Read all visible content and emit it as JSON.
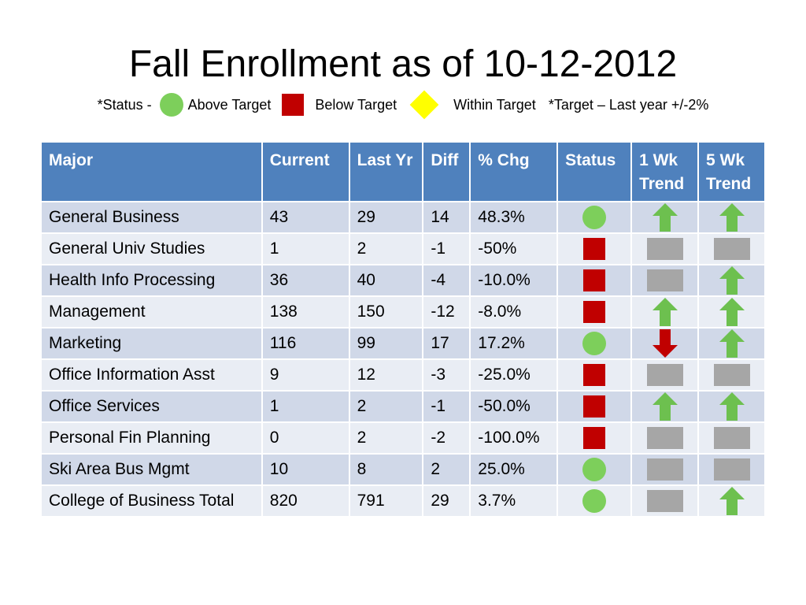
{
  "title": "Fall Enrollment as of 10-12-2012",
  "legend": {
    "status_prefix": "*Status -",
    "above_label": "Above Target",
    "below_label": "Below Target",
    "within_label": "Within Target",
    "target_note": "*Target – Last year +/-2%"
  },
  "colors": {
    "header_bg": "#4f81bd",
    "row_odd": "#d0d8e8",
    "row_even": "#e9edf4",
    "above_green": "#7dcf5b",
    "below_red": "#c00000",
    "within_yellow": "#ffff00",
    "trend_up_green": "#6dc04f",
    "trend_down_red": "#c00000",
    "trend_flat_gray": "#a6a6a6"
  },
  "table": {
    "headers": {
      "major": "Major",
      "current": "Current",
      "last_yr": "Last Yr",
      "diff": "Diff",
      "pct_chg": "% Chg",
      "status": "Status",
      "wk1_line1": "1 Wk",
      "wk1_line2": "Trend",
      "wk5_line1": "5 Wk",
      "wk5_line2": "Trend"
    },
    "rows": [
      {
        "major": "General Business",
        "current": "43",
        "last_yr": "29",
        "diff": "14",
        "pct_chg": "48.3%",
        "status": "above",
        "wk1": "up",
        "wk5": "up"
      },
      {
        "major": "General Univ Studies",
        "current": "1",
        "last_yr": "2",
        "diff": "-1",
        "pct_chg": "-50%",
        "status": "below",
        "wk1": "flat",
        "wk5": "flat"
      },
      {
        "major": "Health Info Processing",
        "current": "36",
        "last_yr": "40",
        "diff": "-4",
        "pct_chg": "-10.0%",
        "status": "below",
        "wk1": "flat",
        "wk5": "up"
      },
      {
        "major": "Management",
        "current": "138",
        "last_yr": "150",
        "diff": "-12",
        "pct_chg": "-8.0%",
        "status": "below",
        "wk1": "up",
        "wk5": "up"
      },
      {
        "major": "Marketing",
        "current": "116",
        "last_yr": "99",
        "diff": "17",
        "pct_chg": "17.2%",
        "status": "above",
        "wk1": "down",
        "wk5": "up"
      },
      {
        "major": "Office Information Asst",
        "current": "9",
        "last_yr": "12",
        "diff": "-3",
        "pct_chg": "-25.0%",
        "status": "below",
        "wk1": "flat",
        "wk5": "flat"
      },
      {
        "major": "Office Services",
        "current": "1",
        "last_yr": "2",
        "diff": "-1",
        "pct_chg": "-50.0%",
        "status": "below",
        "wk1": "up",
        "wk5": "up"
      },
      {
        "major": "Personal Fin Planning",
        "current": "0",
        "last_yr": "2",
        "diff": "-2",
        "pct_chg": "-100.0%",
        "status": "below",
        "wk1": "flat",
        "wk5": "flat"
      },
      {
        "major": "Ski Area Bus Mgmt",
        "current": "10",
        "last_yr": "8",
        "diff": "2",
        "pct_chg": "25.0%",
        "status": "above",
        "wk1": "flat",
        "wk5": "flat"
      },
      {
        "major": "College of Business Total",
        "current": "820",
        "last_yr": "791",
        "diff": "29",
        "pct_chg": "3.7%",
        "status": "above",
        "wk1": "flat",
        "wk5": "up"
      }
    ]
  }
}
